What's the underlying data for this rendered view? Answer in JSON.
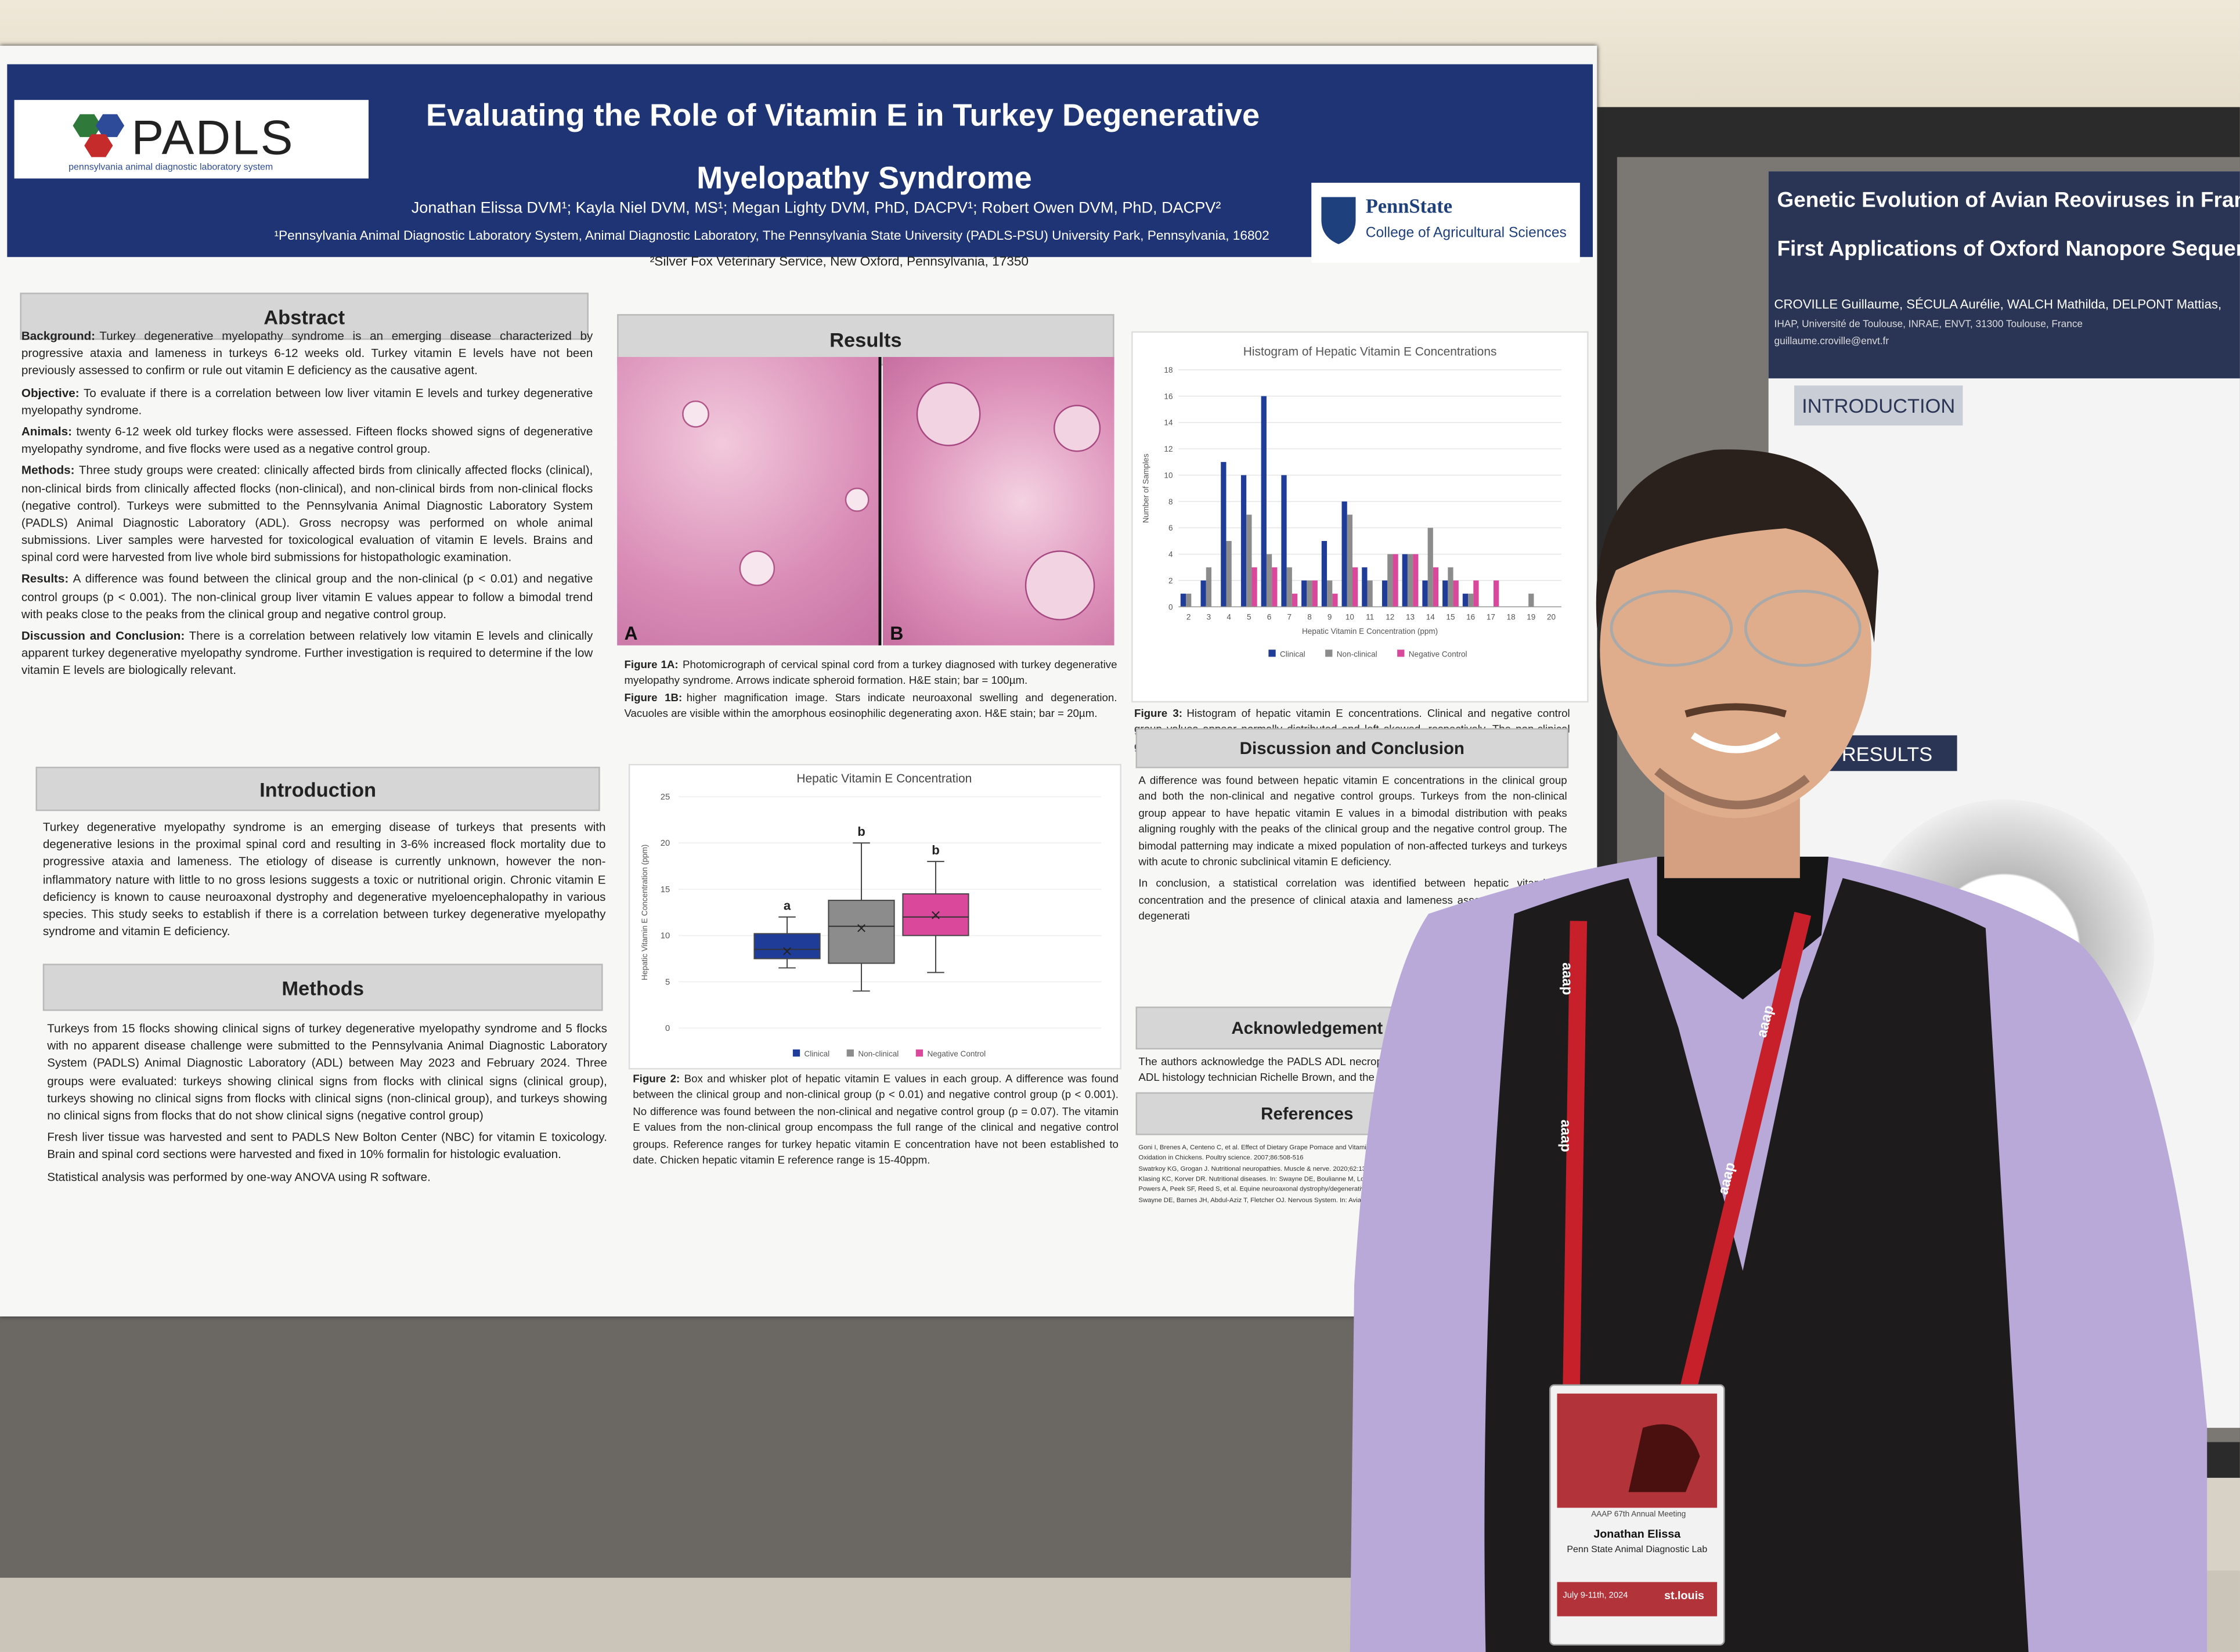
{
  "poster": {
    "logo_text": "PADLS",
    "logo_subtitle": "pennsylvania animal diagnostic laboratory system",
    "title_line_1": "Evaluating the Role of Vitamin E in Turkey Degenerative",
    "title_line_2": "Myelopathy Syndrome",
    "authors": "Jonathan Elissa DVM¹; Kayla Niel DVM, MS¹; Megan Lighty DVM, PhD, DACPV¹; Robert Owen DVM, PhD, DACPV²",
    "affiliation_1": "¹Pennsylvania Animal Diagnostic Laboratory System, Animal Diagnostic Laboratory, The Pennsylvania State University (PADLS-PSU) University Park, Pennsylvania, 16802",
    "affiliation_2": "²Silver Fox Veterinary Service, New Oxford, Pennsylvania, 17350",
    "pennstate": "PennState",
    "college": "College of Agricultural Sciences",
    "abstract": {
      "heading": "Abstract",
      "paragraphs": [
        {
          "label": "Background:",
          "text": "Turkey degenerative myelopathy syndrome is an emerging disease characterized by progressive ataxia and lameness in turkeys 6-12 weeks old. Turkey vitamin E levels have not been previously assessed to confirm or rule out vitamin E deficiency as the causative agent."
        },
        {
          "label": "Objective:",
          "text": "To evaluate if there is a correlation between low liver vitamin E levels and turkey degenerative myelopathy syndrome."
        },
        {
          "label": "Animals:",
          "text": "twenty 6-12 week old turkey flocks were assessed. Fifteen flocks showed signs of degenerative myelopathy syndrome, and five flocks were used as a negative control group."
        },
        {
          "label": "Methods:",
          "text": "Three study groups were created: clinically affected birds from clinically affected flocks (clinical), non-clinical birds from clinically affected flocks (non-clinical), and non-clinical birds from non-clinical flocks (negative control). Turkeys were submitted to the Pennsylvania Animal Diagnostic Laboratory System (PADLS) Animal Diagnostic Laboratory (ADL). Gross necropsy was performed on whole animal submissions. Liver samples were harvested for toxicological evaluation of vitamin E levels. Brains and spinal cord were harvested from live whole bird submissions for histopathologic examination."
        },
        {
          "label": "Results:",
          "text": "A difference was found between the clinical group and the non-clinical (p < 0.01) and negative control groups (p < 0.001). The non-clinical group liver vitamin E values appear to follow a bimodal trend with peaks close to the peaks from the clinical group and negative control group."
        },
        {
          "label": "Discussion and Conclusion:",
          "text": "There is a correlation between relatively low vitamin E levels and clinically apparent turkey degenerative myelopathy syndrome. Further investigation is required to determine if the low vitamin E levels are biologically relevant."
        }
      ]
    },
    "introduction": {
      "heading": "Introduction",
      "text": "Turkey degenerative myelopathy syndrome is an emerging disease of turkeys that presents with degenerative lesions in the proximal spinal cord and resulting in 3-6% increased flock mortality due to progressive ataxia and lameness. The etiology of disease is currently unknown, however the non-inflammatory nature with little to no gross lesions suggests a toxic or nutritional origin. Chronic vitamin E deficiency is known to cause neuroaxonal dystrophy and degenerative myeloencephalopathy in various species. This study seeks to establish if there is a correlation between turkey degenerative myelopathy syndrome and vitamin E deficiency."
    },
    "methods": {
      "heading": "Methods",
      "paragraphs": [
        "Turkeys from 15 flocks showing clinical signs of turkey degenerative myelopathy syndrome and 5 flocks with no apparent disease challenge were submitted to the Pennsylvania Animal Diagnostic Laboratory System (PADLS) Animal Diagnostic Laboratory (ADL) between May 2023 and February 2024. Three groups were evaluated: turkeys showing clinical signs from flocks with clinical signs (clinical group), turkeys showing no clinical signs from flocks with clinical signs (non-clinical group), and turkeys showing no clinical signs from flocks that do not show clinical signs (negative control group)",
        "Fresh liver tissue was harvested and sent to PADLS New Bolton Center (NBC) for vitamin E toxicology. Brain and spinal cord sections were harvested and fixed in 10% formalin for histologic evaluation.",
        "Statistical analysis was performed by one-way ANOVA using R software."
      ]
    },
    "results": {
      "heading": "Results",
      "panel_a": "A",
      "panel_b": "B",
      "figure_1a": {
        "label": "Figure 1A:",
        "text": "Photomicrograph of cervical spinal cord from a turkey diagnosed with turkey degenerative myelopathy syndrome. Arrows indicate spheroid formation. H&E stain; bar = 100µm."
      },
      "figure_1b": {
        "label": "Figure 1B:",
        "text": "higher magnification image. Stars indicate neuroaxonal swelling and degeneration. Vacuoles are visible within the amorphous eosinophilic degenerating axon. H&E stain; bar = 20µm."
      },
      "boxplot": {
        "type": "box",
        "title": "Hepatic Vitamin E Concentration",
        "y_label": "Hepatic Vitamin E Concentration (ppm)",
        "ylim": [
          0,
          25
        ],
        "yticks": [
          0,
          5,
          10,
          15,
          20,
          25
        ],
        "series": [
          {
            "name": "Clinical",
            "color": "#1f3c99",
            "min": 6.5,
            "q1": 7.5,
            "median": 8.5,
            "q3": 10.2,
            "max": 12,
            "mean": 8.3,
            "letter": "a"
          },
          {
            "name": "Non-clinical",
            "color": "#8c8c8c",
            "min": 4,
            "q1": 7,
            "median": 11,
            "q3": 13.8,
            "max": 20,
            "mean": 10.8,
            "letter": "b"
          },
          {
            "name": "Negative Control",
            "color": "#d9489a",
            "min": 6,
            "q1": 10,
            "median": 12,
            "q3": 14.5,
            "max": 18,
            "mean": 12.2,
            "letter": "b"
          }
        ]
      },
      "figure_2": {
        "label": "Figure 2:",
        "text": "Box and whisker plot of hepatic vitamin E values in each group. A difference was found between the clinical group and non-clinical group (p < 0.01) and negative control group (p < 0.001). No difference was found between the non-clinical and negative control group (p = 0.07). The vitamin E values from the non-clinical group encompass the full range of the clinical and negative control groups. Reference ranges for turkey hepatic vitamin E concentration have not been established to date. Chicken hepatic vitamin E reference range is 15-40ppm."
      },
      "histogram": {
        "type": "bar",
        "title": "Histogram of Hepatic Vitamin E Concentrations",
        "x_label": "Hepatic Vitamin E Concentration (ppm)",
        "y_label": "Number of Samples",
        "categories": [
          2,
          3,
          4,
          5,
          6,
          7,
          8,
          9,
          10,
          11,
          12,
          13,
          14,
          15,
          16,
          17,
          18,
          19,
          20
        ],
        "ylim": [
          0,
          18
        ],
        "yticks": [
          0,
          2,
          4,
          6,
          8,
          10,
          12,
          14,
          16,
          18
        ],
        "series": [
          {
            "name": "Clinical",
            "color": "#1f3c99",
            "values": [
              1,
              2,
              11,
              10,
              16,
              10,
              2,
              5,
              8,
              3,
              2,
              4,
              2,
              2,
              1,
              0,
              0,
              0,
              0
            ]
          },
          {
            "name": "Non-clinical",
            "color": "#8c8c8c",
            "values": [
              1,
              3,
              5,
              7,
              4,
              3,
              2,
              2,
              7,
              2,
              4,
              4,
              6,
              3,
              1,
              0,
              0,
              1,
              0
            ]
          },
          {
            "name": "Negative Control",
            "color": "#d9489a",
            "values": [
              0,
              0,
              0,
              3,
              3,
              1,
              2,
              1,
              3,
              0,
              4,
              4,
              3,
              2,
              2,
              2,
              0,
              0,
              0
            ]
          }
        ]
      },
      "figure_3": {
        "label": "Figure 3:",
        "text": "Histogram of hepatic vitamin E concentrations. Clinical and negative control group values appear normally distributed and left skewed, respectively. The non-clinical group distribution appears bimodal."
      }
    },
    "discussion": {
      "heading": "Discussion and Conclusion",
      "paragraphs": [
        "A difference was found between hepatic vitamin E concentrations in the clinical group and both the non-clinical and negative control groups. Turkeys from the non-clinical group appear to have hepatic vitamin E values in a bimodal distribution with peaks aligning roughly with the peaks of the clinical group and the negative control group. The bimodal patterning may indicate a mixed population of non-affected turkeys and turkeys with acute to chronic subclinical vitamin E deficiency.",
        "In conclusion, a statistical correlation was identified between hepatic vitamin E concentration and the presence of clinical ataxia and lameness associated with turkey degenerati"
      ]
    },
    "acknowledgements": {
      "heading": "Acknowledgement",
      "text": "The authors acknowledge the PADLS ADL necropsy technic Buck, the ADL histology technician Richelle Brown, and the P"
    },
    "references": {
      "heading": "References",
      "items": [
        "Goni I, Brenes A, Centeno C, et al. Effect of Dietary Grape Pomace and Vitamin E on Growth Performance",
        "Oxidation in Chickens. Poultry science. 2007;86:508-516",
        "Swatrkoy KG, Grogan J. Nutritional neuropathies. Muscle & nerve. 2020;62:13-29.",
        "Klasing KC, Korver DR. Nutritional diseases. In: Swayne DE, Boulianne M, Logue CM, et al., eds.",
        "Powers A, Peek SF, Reed S, et al. Equine neuroaxonal dystrophy/degenerative myeloencephalopathy",
        "Swayne DE, Barnes JH, Abdul-Aziz T, Fletcher OJ. Nervous System. In: Avian Histopathology"
      ]
    }
  },
  "neighbor_poster": {
    "title_line_1": "Genetic Evolution of Avian Reoviruses in France (",
    "title_line_2": "First Applications of Oxford Nanopore Sequencin",
    "authors": "CROVILLE Guillaume, SÉCULA Aurélie, WALCH Mathilda, DELPONT Mattias,",
    "affiliation": "IHAP, Université de Toulouse, INRAE, ENVT, 31300 Toulouse, France",
    "email": "guillaume.croville@envt.fr",
    "introduction": "INTRODUCTION",
    "results": "RESULTS"
  },
  "badge": {
    "lanyard": "aaap",
    "meeting": "AAAP 67th Annual Meeting",
    "name": "Jonathan Elissa",
    "organization": "Penn State Animal Diagnostic Lab",
    "dates": "July 9-11th, 2024",
    "city": "st.louis"
  }
}
